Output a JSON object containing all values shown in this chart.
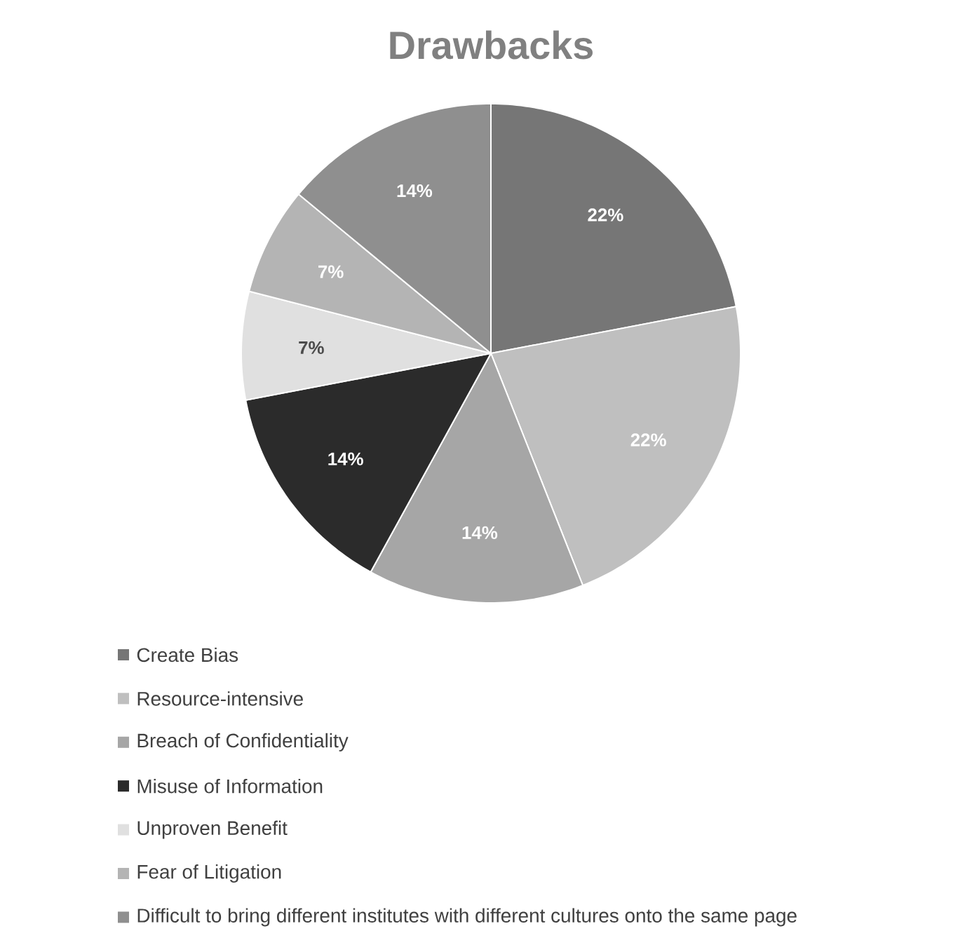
{
  "chart_data": {
    "type": "pie",
    "title": "Drawbacks",
    "categories": [
      "Create Bias",
      "Resource-intensive",
      "Breach of Confidentiality",
      "Misuse of Information",
      "Unproven Benefit",
      "Fear of Litigation",
      "Difficult to bring different institutes with different cultures onto the same page"
    ],
    "values": [
      22,
      22,
      14,
      14,
      7,
      7,
      14
    ],
    "value_labels": [
      "22%",
      "22%",
      "14%",
      "14%",
      "7%",
      "7%",
      "14%"
    ],
    "colors": [
      "#767676",
      "#bfbfbf",
      "#a6a6a6",
      "#2b2b2b",
      "#e0e0e0",
      "#b4b4b4",
      "#8f8f8f"
    ],
    "legend": "bottom"
  }
}
